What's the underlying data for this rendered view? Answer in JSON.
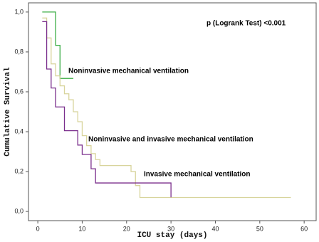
{
  "chart_data": {
    "type": "step",
    "xlabel": "ICU stay (days)",
    "ylabel": "Cumulative Survival",
    "annotations": [
      "p (Logrank Test) <0.001"
    ],
    "xlim": [
      -2.1,
      62.7
    ],
    "ylim": [
      -0.046,
      1.046
    ],
    "xticks": [
      0,
      10,
      20,
      30,
      40,
      50,
      60
    ],
    "yticks": [
      {
        "value": 0,
        "label": "0,0"
      },
      {
        "value": 0.2,
        "label": "0,2"
      },
      {
        "value": 0.4,
        "label": "0,4"
      },
      {
        "value": 0.6,
        "label": "0,6"
      },
      {
        "value": 0.8,
        "label": "0,8"
      },
      {
        "value": 1,
        "label": "1,0"
      }
    ],
    "series": [
      {
        "name": "Noninvasive mechanical ventilation",
        "color": "#3cae46",
        "x": [
          1,
          4,
          5,
          8
        ],
        "values": [
          1.0,
          0.833,
          0.667,
          0.667
        ]
      },
      {
        "name": "Noninvasive and invasive mechanical ventilation",
        "color": "#d8d49c",
        "x": [
          1,
          2,
          3,
          4,
          5,
          6,
          7,
          8,
          9,
          10,
          11,
          12,
          13,
          14,
          21,
          22,
          23,
          57
        ],
        "values": [
          0.97,
          0.87,
          0.74,
          0.68,
          0.63,
          0.59,
          0.56,
          0.5,
          0.45,
          0.38,
          0.33,
          0.29,
          0.26,
          0.23,
          0.2,
          0.13,
          0.07,
          0.07
        ]
      },
      {
        "name": "Invasive mechanical ventilation",
        "color": "#7a2e8c",
        "x": [
          1,
          2,
          3,
          4,
          6,
          9,
          10,
          12,
          13,
          30
        ],
        "values": [
          0.952,
          0.714,
          0.619,
          0.524,
          0.405,
          0.333,
          0.286,
          0.214,
          0.143,
          0.071
        ]
      }
    ]
  }
}
